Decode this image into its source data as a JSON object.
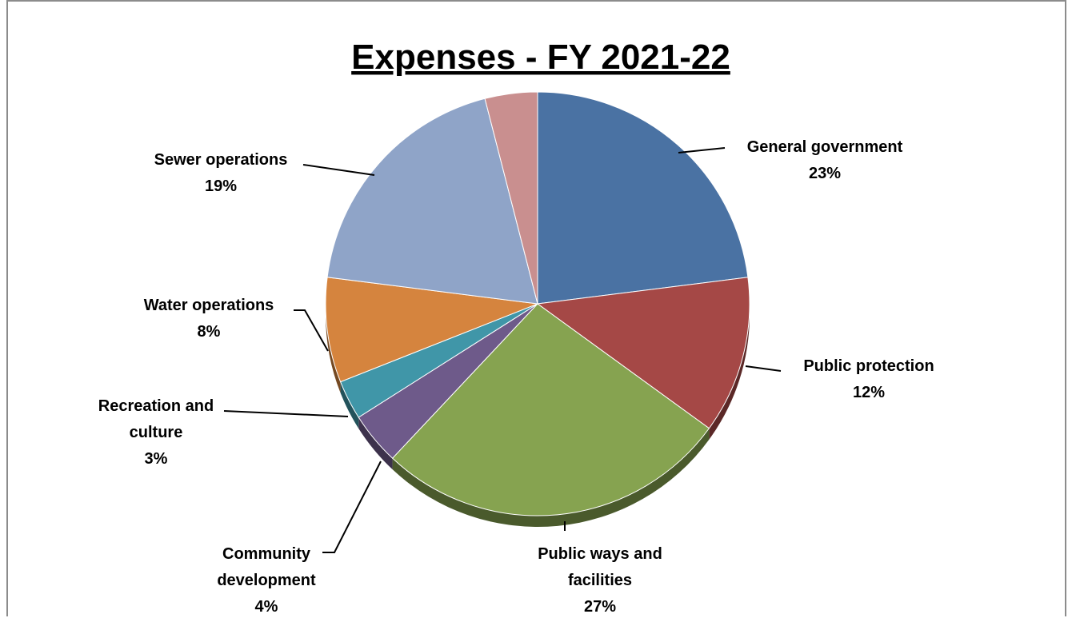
{
  "chart_data": {
    "type": "pie",
    "title": "Expenses - FY 2021-22",
    "slices": [
      {
        "label": "General government",
        "value": 23,
        "value_label": "23%",
        "color": "#4a72a3"
      },
      {
        "label": "Public protection",
        "value": 12,
        "value_label": "12%",
        "color": "#a54846"
      },
      {
        "label": "Public ways and facilities",
        "value": 27,
        "value_label": "27%",
        "color": "#86a350"
      },
      {
        "label": "Community development",
        "value": 4,
        "value_label": "4%",
        "color": "#6e5a8a"
      },
      {
        "label": "Recreation and culture",
        "value": 3,
        "value_label": "3%",
        "color": "#4096a8"
      },
      {
        "label": "Water operations",
        "value": 8,
        "value_label": "8%",
        "color": "#d5843e"
      },
      {
        "label": "Sewer operations",
        "value": 19,
        "value_label": "19%",
        "color": "#8fa4c8"
      },
      {
        "label": "",
        "value": 4,
        "value_label": "",
        "color": "#c98f8f"
      }
    ],
    "legend": "none",
    "start_angle": "12 o'clock",
    "direction": "clockwise"
  }
}
